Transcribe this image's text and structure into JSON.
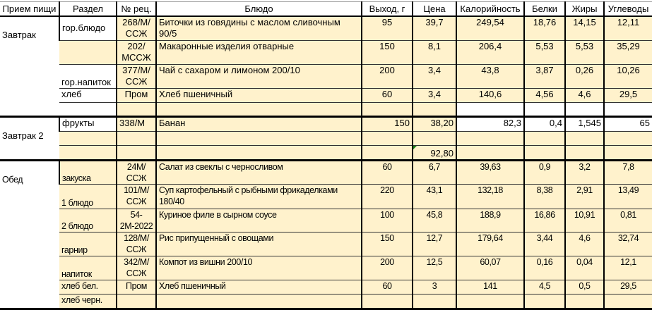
{
  "headers": [
    "Прием пищи",
    "Раздел",
    "№ рец.",
    "Блюдо",
    "Выход, г",
    "Цена",
    "Калорийность",
    "Белки",
    "Жиры",
    "Углеводы"
  ],
  "colors": {
    "cell_fill": "#fff2cc",
    "border": "#000000",
    "comment_marker": "#1a7f1a"
  },
  "groups": [
    {
      "meal": "Завтрак",
      "rows": [
        {
          "section": "гор.блюдо",
          "recipe": "268/М/ССЖ",
          "dish": "Биточки из говядины с маслом сливочным 90/5",
          "yield": "95",
          "price": "39,7",
          "kcal": "249,54",
          "protein": "18,76",
          "fat": "14,15",
          "carbs": "12,11"
        },
        {
          "section": "",
          "recipe": "202/МССЖ",
          "dish": "Макаронные изделия отварные",
          "yield": "150",
          "price": "8,1",
          "kcal": "206,4",
          "protein": "5,53",
          "fat": "5,53",
          "carbs": "35,29"
        },
        {
          "section": "гор.напиток",
          "recipe": "377/М/ССЖ",
          "dish": "Чай с сахаром и лимоном 200/10",
          "yield": "200",
          "price": "3,4",
          "kcal": "43,8",
          "protein": "3,87",
          "fat": "0,26",
          "carbs": "10,26"
        },
        {
          "section": "хлеб",
          "recipe": "Пром",
          "dish": "Хлеб пшеничный",
          "yield": "60",
          "price": "3,4",
          "kcal": "140,6",
          "protein": "4,56",
          "fat": "4,6",
          "carbs": "29,5"
        },
        {
          "section": "",
          "recipe": "",
          "dish": "",
          "yield": "",
          "price": "",
          "kcal": "",
          "protein": "",
          "fat": "",
          "carbs": ""
        }
      ]
    },
    {
      "meal": "Завтрак 2",
      "rows": [
        {
          "section": "фрукты",
          "recipe": "338/М",
          "dish": "Банан",
          "yield": "150",
          "price": "38,20",
          "kcal": "82,3",
          "protein": "0,4",
          "fat": "1,545",
          "carbs": "65"
        },
        {
          "section": "",
          "recipe": "",
          "dish": "",
          "yield": "",
          "price": "",
          "kcal": "",
          "protein": "",
          "fat": "",
          "carbs": ""
        },
        {
          "section": "",
          "recipe": "",
          "dish": "",
          "yield": "",
          "price": "92,80",
          "kcal": "",
          "protein": "",
          "fat": "",
          "carbs": ""
        }
      ]
    },
    {
      "meal": "Обед",
      "rows": [
        {
          "section": "закуска",
          "recipe": "24М/ССЖ",
          "dish": "Салат из свеклы с черносливом",
          "yield": "60",
          "price": "6,7",
          "kcal": "39,63",
          "protein": "0,9",
          "fat": "3,2",
          "carbs": "7,8"
        },
        {
          "section": "1 блюдо",
          "recipe": "101/М/ССЖ",
          "dish": "Суп картофельный с рыбными фрикаделками 180/40",
          "yield": "220",
          "price": "43,1",
          "kcal": "132,18",
          "protein": "8,38",
          "fat": "2,91",
          "carbs": "13,49"
        },
        {
          "section": "2 блюдо",
          "recipe": "54-2М-2022",
          "dish": "Куриное филе в сырном соусе",
          "yield": "100",
          "price": "45,8",
          "kcal": "188,9",
          "protein": "16,86",
          "fat": "10,91",
          "carbs": "0,81"
        },
        {
          "section": "гарнир",
          "recipe": "128/М/ССЖ",
          "dish": "Рис припущенный с овощами",
          "yield": "150",
          "price": "12,7",
          "kcal": "179,64",
          "protein": "3,44",
          "fat": "4,6",
          "carbs": "32,74"
        },
        {
          "section": "напиток",
          "recipe": "342/М/ССЖ",
          "dish": "Компот из вишни 200/10",
          "yield": "200",
          "price": "12,5",
          "kcal": "60,07",
          "protein": "0,16",
          "fat": "0,04",
          "carbs": "12,1"
        },
        {
          "section": "хлеб бел.",
          "recipe": "Пром",
          "dish": "Хлеб пшеничный",
          "yield": "60",
          "price": "3",
          "kcal": "141",
          "protein": "4,5",
          "fat": "0,5",
          "carbs": "29,5"
        },
        {
          "section": "хлеб черн.",
          "recipe": "",
          "dish": "",
          "yield": "",
          "price": "",
          "kcal": "",
          "protein": "",
          "fat": "",
          "carbs": ""
        }
      ]
    }
  ]
}
